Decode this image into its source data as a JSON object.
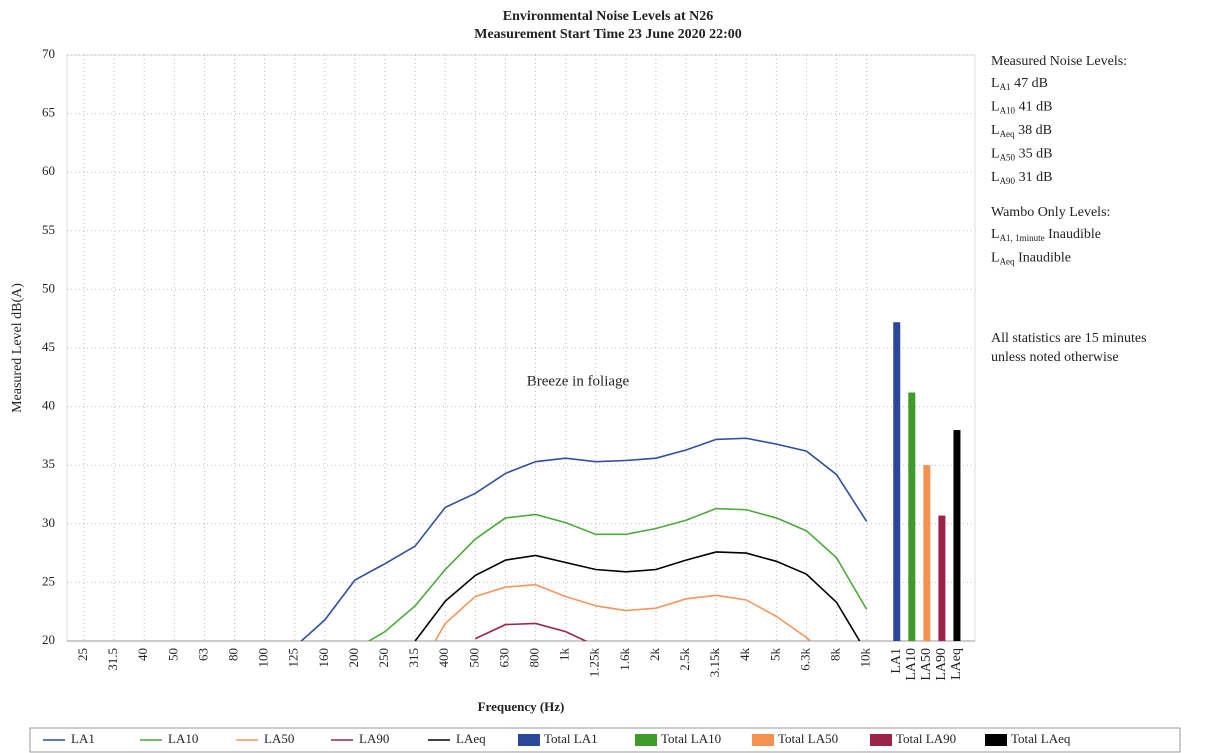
{
  "chart_data": {
    "type": "line",
    "title": "Environmental Noise Levels at N26",
    "subtitle": "Measurement Start Time 23 June 2020 22:00",
    "x_label": "Frequency (Hz)",
    "y_label": "Measured Level dB(A)",
    "annotation": "Breeze in foliage",
    "categories": [
      "25",
      "31.5",
      "40",
      "50",
      "63",
      "80",
      "100",
      "125",
      "160",
      "200",
      "250",
      "315",
      "400",
      "500",
      "630",
      "800",
      "1k",
      "1.25k",
      "1.6k",
      "2k",
      "2.5k",
      "3.15k",
      "4k",
      "5k",
      "6.3k",
      "8k",
      "10k"
    ],
    "series": [
      {
        "name": "LA1",
        "color": "#2f4f9f",
        "values": [
          null,
          null,
          null,
          null,
          null,
          null,
          null,
          19.5,
          21.8,
          25.2,
          26.6,
          28.1,
          31.4,
          32.6,
          34.3,
          35.3,
          35.6,
          35.3,
          35.4,
          35.6,
          36.3,
          37.2,
          37.3,
          36.8,
          36.2,
          34.2,
          30.2
        ]
      },
      {
        "name": "LA10",
        "color": "#4caa3a",
        "values": [
          null,
          null,
          null,
          null,
          null,
          null,
          null,
          null,
          null,
          19.3,
          20.8,
          23.0,
          26.1,
          28.7,
          30.5,
          30.8,
          30.1,
          29.1,
          29.1,
          29.6,
          30.3,
          31.3,
          31.2,
          30.5,
          29.4,
          27.1,
          22.7
        ]
      },
      {
        "name": "LA50",
        "color": "#f7955a",
        "values": [
          null,
          null,
          null,
          null,
          null,
          null,
          null,
          null,
          null,
          null,
          null,
          17.0,
          21.5,
          23.8,
          24.6,
          24.8,
          23.8,
          23.0,
          22.6,
          22.8,
          23.6,
          23.9,
          23.5,
          22.1,
          20.3,
          18.0,
          null
        ]
      },
      {
        "name": "LA90",
        "color": "#9b2350",
        "values": [
          null,
          null,
          null,
          null,
          null,
          null,
          null,
          null,
          null,
          null,
          null,
          null,
          null,
          20.2,
          21.4,
          21.5,
          20.8,
          19.6,
          null,
          null,
          null,
          null,
          null,
          null,
          null,
          null,
          null
        ]
      },
      {
        "name": "LAeq",
        "color": "#000000",
        "values": [
          null,
          null,
          null,
          null,
          null,
          null,
          null,
          null,
          null,
          null,
          null,
          20.0,
          23.4,
          25.6,
          26.9,
          27.3,
          26.7,
          26.1,
          25.9,
          26.1,
          26.9,
          27.6,
          27.5,
          26.8,
          25.7,
          23.3,
          19.0
        ]
      }
    ],
    "totals": [
      {
        "name": "Total LA1",
        "label": "LA1",
        "color": "#2a479b",
        "value": 47.2
      },
      {
        "name": "Total LA10",
        "label": "LA10",
        "color": "#3f9a2a",
        "value": 41.2
      },
      {
        "name": "Total LA50",
        "label": "LA50",
        "color": "#f79150",
        "value": 35.0
      },
      {
        "name": "Total LA90",
        "label": "LA90",
        "color": "#9b2347",
        "value": 30.7
      },
      {
        "name": "Total LAeq",
        "label": "LAeq",
        "color": "#000000",
        "value": 38.0
      }
    ],
    "ylim": [
      20,
      70
    ],
    "yticks": [
      20,
      25,
      30,
      35,
      40,
      45,
      50,
      55,
      60,
      65,
      70
    ],
    "grid": true,
    "legend": "bottom",
    "side_notes": {
      "measured_title": "Measured Noise Levels:",
      "measured": [
        {
          "symbol": "L",
          "sub": "A1",
          "value": "47 dB"
        },
        {
          "symbol": "L",
          "sub": "A10",
          "value": "41 dB"
        },
        {
          "symbol": "L",
          "sub": "Aeq",
          "value": "38 dB"
        },
        {
          "symbol": "L",
          "sub": "A50",
          "value": "35 dB"
        },
        {
          "symbol": "L",
          "sub": "A90",
          "value": "31 dB"
        }
      ],
      "wambo_title": "Wambo Only Levels:",
      "wambo": [
        {
          "symbol": "L",
          "sub": "A1, 1minute",
          "value": "Inaudible"
        },
        {
          "symbol": "L",
          "sub": "Aeq",
          "value": "Inaudible"
        }
      ],
      "note": [
        "All statistics are 15 minutes",
        "unless noted otherwise"
      ]
    }
  }
}
